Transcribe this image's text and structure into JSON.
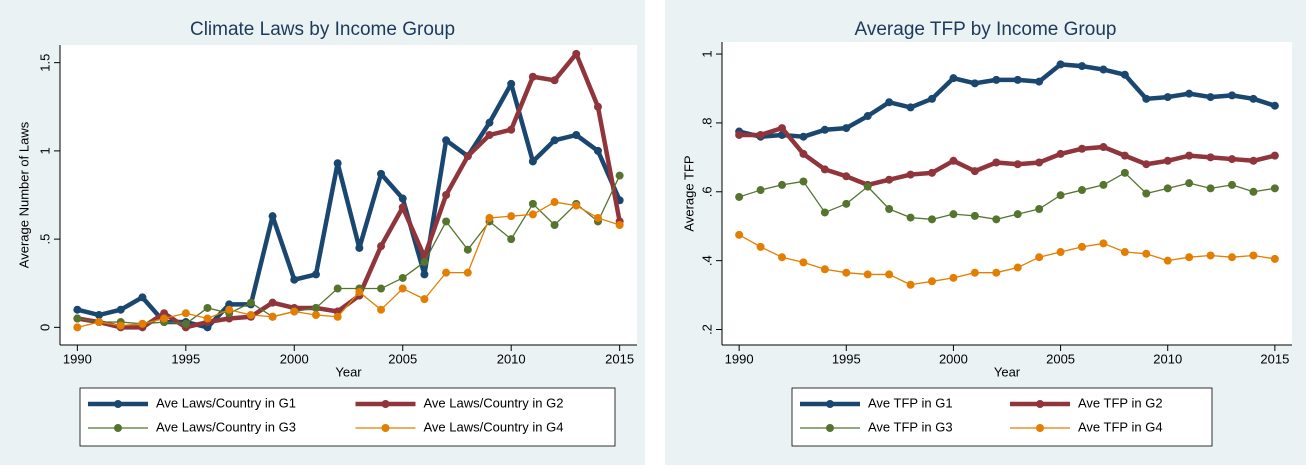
{
  "chart_data": [
    {
      "type": "line",
      "title": "Climate Laws by Income Group",
      "x_label": "Year",
      "y_label": "Average Number of Laws",
      "x": [
        1990,
        1991,
        1992,
        1993,
        1994,
        1995,
        1996,
        1997,
        1998,
        1999,
        2000,
        2001,
        2002,
        2003,
        2004,
        2005,
        2006,
        2007,
        2008,
        2009,
        2010,
        2011,
        2012,
        2013,
        2014,
        2015
      ],
      "xlim": [
        1989.2,
        2015.8
      ],
      "xticks": [
        1990,
        1995,
        2000,
        2005,
        2010,
        2015
      ],
      "ylim": [
        -0.1,
        1.6
      ],
      "yticks": [
        0,
        {
          "value": 0.5,
          "label": ".5"
        },
        1,
        1.5
      ],
      "series": [
        {
          "name": "Ave Laws/Country in G1",
          "color": "#1a476f",
          "width": 4.5,
          "values": [
            0.1,
            0.07,
            0.1,
            0.17,
            0.03,
            0.03,
            0,
            0.13,
            0.13,
            0.63,
            0.27,
            0.3,
            0.93,
            0.45,
            0.87,
            0.73,
            0.3,
            1.06,
            0.97,
            1.16,
            1.38,
            0.94,
            1.06,
            1.09,
            1.0,
            0.72
          ]
        },
        {
          "name": "Ave Laws/Country in G2",
          "color": "#90353b",
          "width": 4.5,
          "values": [
            0.05,
            0.03,
            0,
            0,
            0.08,
            0,
            0.03,
            0.05,
            0.06,
            0.14,
            0.11,
            0.11,
            0.09,
            0.18,
            0.46,
            0.68,
            0.4,
            0.75,
            0.97,
            1.09,
            1.12,
            1.42,
            1.4,
            1.55,
            1.25,
            0.6
          ]
        },
        {
          "name": "Ave Laws/Country in G3",
          "color": "#55752f",
          "width": 1.3,
          "values": [
            0.05,
            0.03,
            0.03,
            0.02,
            0.03,
            0.02,
            0.11,
            0.08,
            0.14,
            0.06,
            0.09,
            0.11,
            0.22,
            0.22,
            0.22,
            0.28,
            0.37,
            0.6,
            0.44,
            0.6,
            0.5,
            0.7,
            0.58,
            0.7,
            0.6,
            0.86
          ]
        },
        {
          "name": "Ave Laws/Country in G4",
          "color": "#e37e00",
          "width": 1.3,
          "values": [
            0,
            0.03,
            0.01,
            0.02,
            0.05,
            0.08,
            0.05,
            0.1,
            0.07,
            0.06,
            0.09,
            0.07,
            0.06,
            0.2,
            0.1,
            0.22,
            0.16,
            0.31,
            0.31,
            0.62,
            0.63,
            0.64,
            0.71,
            0.69,
            0.62,
            0.58
          ]
        }
      ]
    },
    {
      "type": "line",
      "title": "Average TFP by Income Group",
      "x_label": "Year",
      "y_label": "Average TFP",
      "x": [
        1990,
        1991,
        1992,
        1993,
        1994,
        1995,
        1996,
        1997,
        1998,
        1999,
        2000,
        2001,
        2002,
        2003,
        2004,
        2005,
        2006,
        2007,
        2008,
        2009,
        2010,
        2011,
        2012,
        2013,
        2014,
        2015
      ],
      "xlim": [
        1989.2,
        2015.8
      ],
      "xticks": [
        1990,
        1995,
        2000,
        2005,
        2010,
        2015
      ],
      "ylim": [
        0.155,
        1.035
      ],
      "yticks": [
        {
          "value": 0.2,
          "label": ".2"
        },
        {
          "value": 0.4,
          "label": ".4"
        },
        {
          "value": 0.6,
          "label": ".6"
        },
        {
          "value": 0.8,
          "label": ".8"
        },
        1
      ],
      "series": [
        {
          "name": "Ave TFP in G1",
          "color": "#1a476f",
          "width": 4.5,
          "values": [
            0.775,
            0.76,
            0.765,
            0.76,
            0.78,
            0.785,
            0.82,
            0.86,
            0.845,
            0.87,
            0.93,
            0.915,
            0.925,
            0.925,
            0.92,
            0.97,
            0.965,
            0.955,
            0.94,
            0.87,
            0.875,
            0.885,
            0.875,
            0.88,
            0.87,
            0.85
          ]
        },
        {
          "name": "Ave TFP in G2",
          "color": "#90353b",
          "width": 4.5,
          "values": [
            0.765,
            0.765,
            0.785,
            0.71,
            0.665,
            0.645,
            0.62,
            0.635,
            0.65,
            0.655,
            0.69,
            0.66,
            0.685,
            0.68,
            0.685,
            0.71,
            0.725,
            0.73,
            0.705,
            0.68,
            0.69,
            0.705,
            0.7,
            0.695,
            0.69,
            0.705
          ]
        },
        {
          "name": "Ave TFP in G3",
          "color": "#55752f",
          "width": 1.3,
          "values": [
            0.585,
            0.605,
            0.62,
            0.63,
            0.54,
            0.565,
            0.615,
            0.55,
            0.525,
            0.52,
            0.535,
            0.53,
            0.52,
            0.535,
            0.55,
            0.59,
            0.605,
            0.62,
            0.655,
            0.595,
            0.61,
            0.625,
            0.61,
            0.62,
            0.6,
            0.61
          ]
        },
        {
          "name": "Ave TFP in G4",
          "color": "#e37e00",
          "width": 1.3,
          "values": [
            0.475,
            0.44,
            0.41,
            0.395,
            0.375,
            0.365,
            0.36,
            0.36,
            0.33,
            0.34,
            0.35,
            0.365,
            0.365,
            0.38,
            0.41,
            0.425,
            0.44,
            0.45,
            0.425,
            0.42,
            0.4,
            0.41,
            0.415,
            0.41,
            0.415,
            0.405
          ]
        }
      ]
    }
  ]
}
